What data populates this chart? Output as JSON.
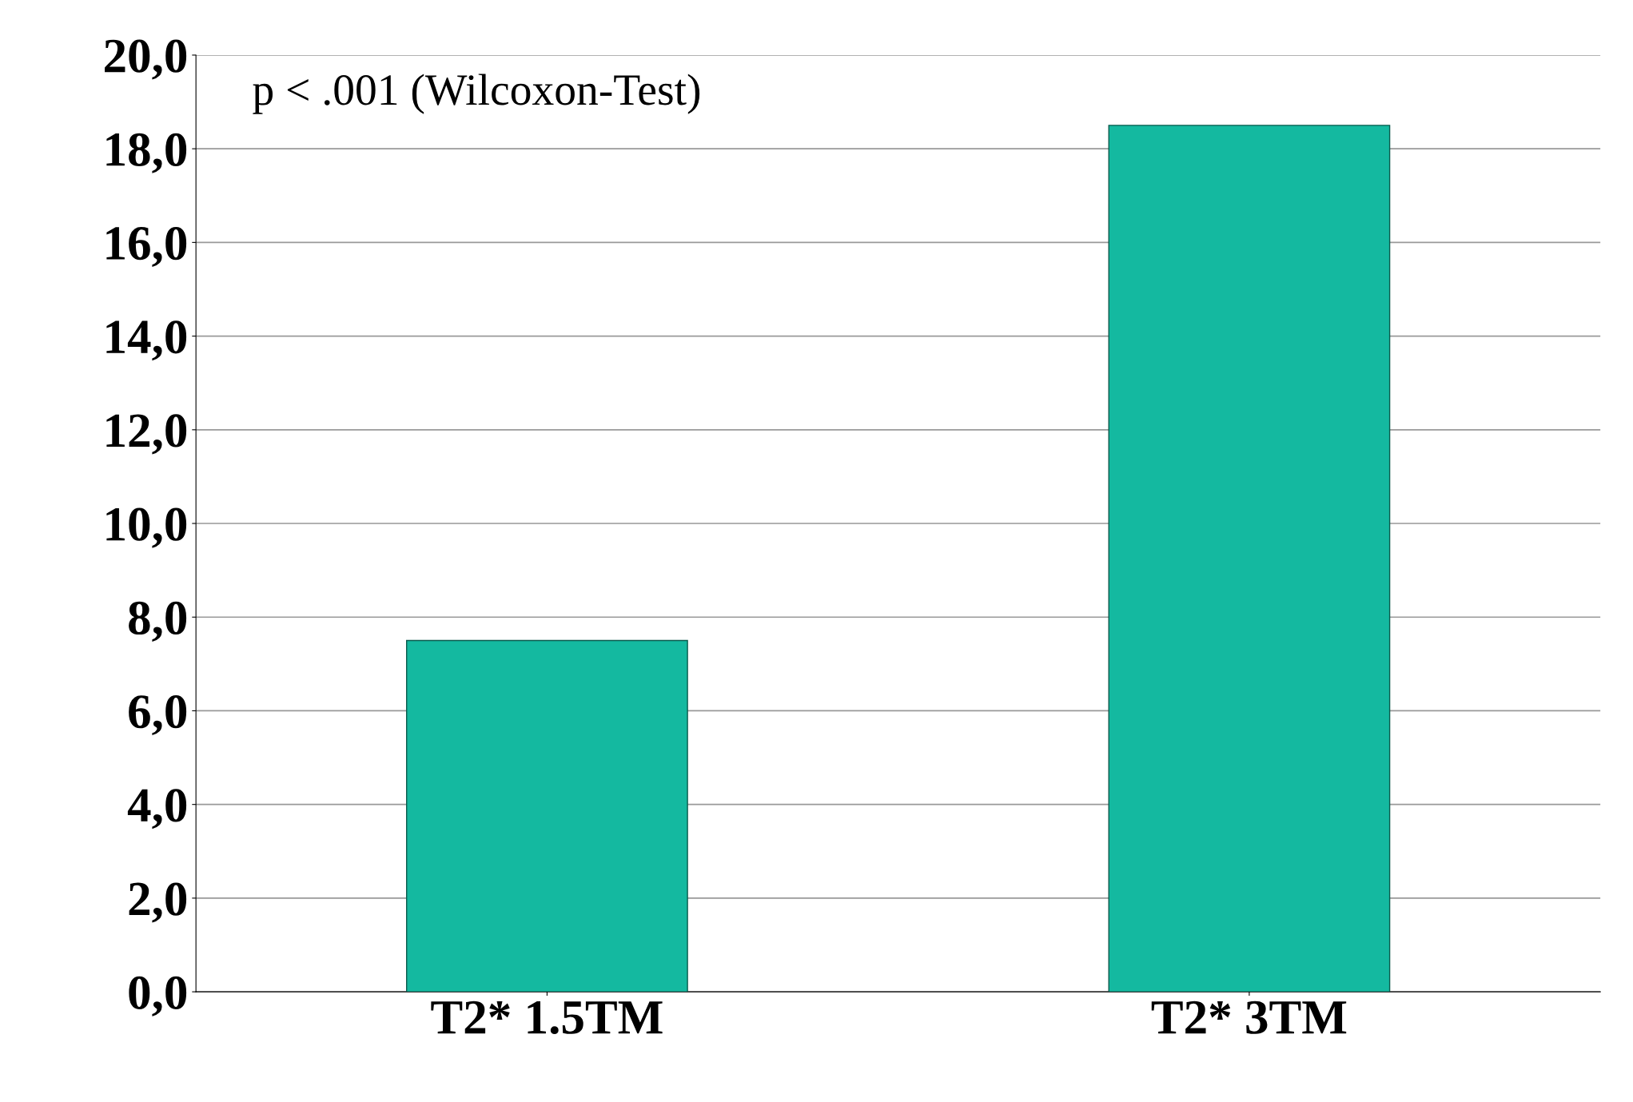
{
  "chart_data": {
    "type": "bar",
    "categories": [
      "T2* 1.5TM",
      "T2* 3TM"
    ],
    "values": [
      7.5,
      18.5
    ],
    "color": "#14b9a0",
    "ylim": [
      0,
      20
    ],
    "yticks": [
      {
        "value": 0,
        "label": "0,0"
      },
      {
        "value": 2,
        "label": "2,0"
      },
      {
        "value": 4,
        "label": "4,0"
      },
      {
        "value": 6,
        "label": "6,0"
      },
      {
        "value": 8,
        "label": "8,0"
      },
      {
        "value": 10,
        "label": "10,0"
      },
      {
        "value": 12,
        "label": "12,0"
      },
      {
        "value": 14,
        "label": "14,0"
      },
      {
        "value": 16,
        "label": "16,0"
      },
      {
        "value": 18,
        "label": "18,0"
      },
      {
        "value": 20,
        "label": "20,0"
      }
    ],
    "grid": "y",
    "annotations": [
      "p < .001 (Wilcoxon-Test)"
    ]
  }
}
